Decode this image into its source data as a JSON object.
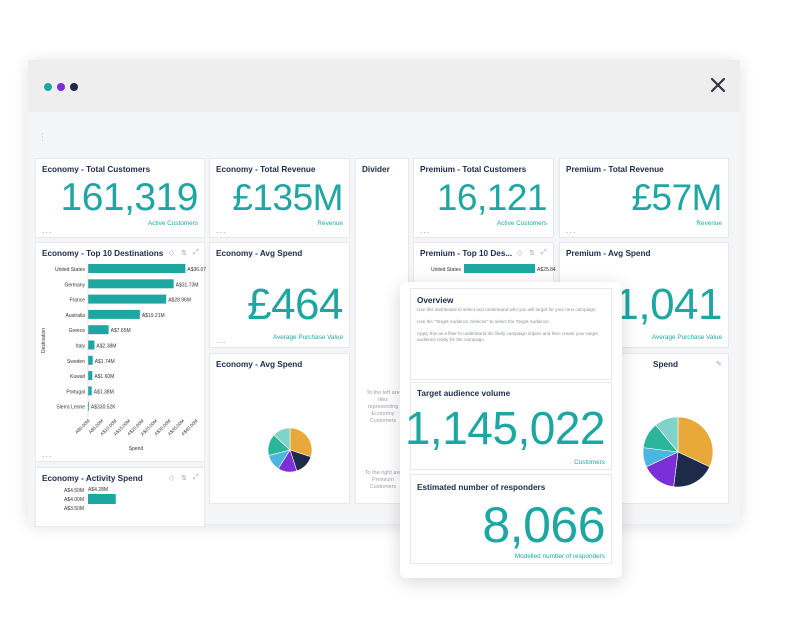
{
  "window": {
    "dots": [
      {
        "name": "teal-dot",
        "color": "#1ea7a2"
      },
      {
        "name": "purple-dot",
        "color": "#7b2fd6"
      },
      {
        "name": "navy-dot",
        "color": "#1d2a4a"
      }
    ],
    "close_icon": "close-icon"
  },
  "colors": {
    "accent": "#1ea7a2",
    "title": "#1d2a4a",
    "pie": [
      "#e8a93a",
      "#1d2a4a",
      "#7b2fd6",
      "#4bb7e0",
      "#2bb59a",
      "#7fd3c8"
    ]
  },
  "cards": {
    "eco_customers": {
      "title": "Economy - Total Customers",
      "value": "161,319",
      "sub": "Active Customers",
      "more": "..."
    },
    "eco_revenue": {
      "title": "Economy - Total Revenue",
      "value": "£135M",
      "sub": "Revenue",
      "more": "..."
    },
    "divider": {
      "title": "Divider",
      "text1": [
        "To the left are",
        "tiles",
        "representing",
        "Economy",
        "Customers"
      ],
      "text2": [
        "To the right are",
        "Premium",
        "Customers"
      ]
    },
    "pre_customers": {
      "title": "Premium - Total Customers",
      "value": "16,121",
      "sub": "Active Customers",
      "more": "..."
    },
    "pre_revenue": {
      "title": "Premium - Total Revenue",
      "value": "£57M",
      "sub": "Revenue",
      "more": "..."
    },
    "eco_dest": {
      "title": "Economy - Top 10 Destinations",
      "more": "..."
    },
    "eco_avg": {
      "title": "Economy - Avg Spend",
      "value": "£464",
      "sub": "Average Purchase Value",
      "more": "..."
    },
    "pre_dest": {
      "title": "Premium - Top 10 Des..."
    },
    "pre_avg": {
      "title": "Premium - Avg Spend",
      "value": "1,041",
      "sub": "Average Purchase Value",
      "more": "..."
    },
    "eco_avg2": {
      "title": "Economy - Avg Spend"
    },
    "pre_pie_title": {
      "title": "Spend"
    },
    "eco_activity": {
      "title": "Economy - Activity Spend"
    }
  },
  "overlay": {
    "overview": {
      "title": "Overview",
      "line1": "Use this dashboard to select and understand who you will target for your next campaign.",
      "line2": "Use the \"Target Audience Selector\" to select the Target Audience.",
      "line3": "Apply this as a filter to understand the likely campaign impact and then create your target",
      "line4": "audience ready for the campaign."
    },
    "volume": {
      "title": "Target audience volume",
      "value": "1,145,022",
      "sub": "Customers"
    },
    "responders": {
      "title": "Estimated number of responders",
      "value": "8,066",
      "sub": "Modelled number of responders"
    }
  },
  "chart_data": [
    {
      "type": "bar",
      "orientation": "horizontal",
      "title": "Economy - Top 10 Destinations",
      "categories": [
        "United States",
        "Germany",
        "France",
        "Australia",
        "Greece",
        "Italy",
        "Sweden",
        "Kuwait",
        "Portugal",
        "Sierra Leone"
      ],
      "values": [
        36.07,
        31.73,
        28.96,
        19.21,
        7.65,
        2.38,
        1.74,
        1.6,
        1.38,
        0.33
      ],
      "labels": [
        "A$36.07",
        "A$31.73M",
        "A$28.96M",
        "A$19.21M",
        "A$7.65M",
        "A$2.38M",
        "A$1.74M",
        "A$1.60M",
        "A$1.38M",
        "A$330.52K"
      ],
      "xlabel": "Spend",
      "ylabel": "Destination",
      "xticks": [
        "A$0.00M",
        "A$5.00M",
        "A$10.00M",
        "A$15.00M",
        "A$20.00M",
        "A$25.00M",
        "A$30.00M",
        "A$35.00M",
        "A$40.00M"
      ],
      "xlim": [
        0,
        40
      ]
    },
    {
      "type": "bar",
      "orientation": "horizontal",
      "title": "Premium - Top 10 Des...",
      "categories": [
        "United States"
      ],
      "values": [
        25.84
      ],
      "labels": [
        "A$25.84"
      ],
      "xlim": [
        0,
        40
      ]
    },
    {
      "type": "pie",
      "title": "Economy - Avg Spend",
      "values": [
        30,
        15,
        14,
        12,
        16,
        13
      ]
    },
    {
      "type": "pie",
      "title": "Spend",
      "values": [
        32,
        20,
        16,
        9,
        12,
        11
      ]
    },
    {
      "type": "bar",
      "orientation": "horizontal",
      "title": "Economy - Activity Spend",
      "categories": [
        "A$4.28M"
      ],
      "values": [
        4.28
      ],
      "labels": [
        "A$4.28M"
      ],
      "yticks": [
        "A$4.50M",
        "A$4.00M",
        "A$3.50M"
      ],
      "xlim": [
        0,
        40
      ]
    }
  ]
}
